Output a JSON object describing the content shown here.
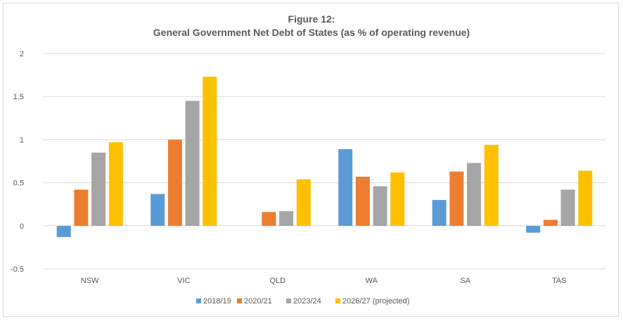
{
  "chart_data": {
    "type": "bar",
    "title": "Figure 12:",
    "subtitle": "General Government Net Debt of States (as % of operating revenue)",
    "categories": [
      "NSW",
      "VIC",
      "QLD",
      "WA",
      "SA",
      "TAS"
    ],
    "series": [
      {
        "name": "2018/19",
        "color": "#5b9bd5",
        "values": [
          -0.13,
          0.37,
          0,
          0.89,
          0.3,
          -0.08
        ]
      },
      {
        "name": "2020/21",
        "color": "#ed7d31",
        "values": [
          0.42,
          1.0,
          0.16,
          0.57,
          0.63,
          0.07
        ]
      },
      {
        "name": "2023/24",
        "color": "#a5a5a5",
        "values": [
          0.85,
          1.45,
          0.17,
          0.46,
          0.73,
          0.42
        ]
      },
      {
        "name": "2026/27 (projected)",
        "color": "#ffc000",
        "values": [
          0.97,
          1.73,
          0.54,
          0.62,
          0.94,
          0.64
        ]
      }
    ],
    "yticks": [
      "-0.5",
      "0",
      "0.5",
      "1",
      "1.5",
      "2"
    ],
    "ylim": [
      -0.5,
      2
    ],
    "grid": true,
    "legend_position": "bottom"
  }
}
